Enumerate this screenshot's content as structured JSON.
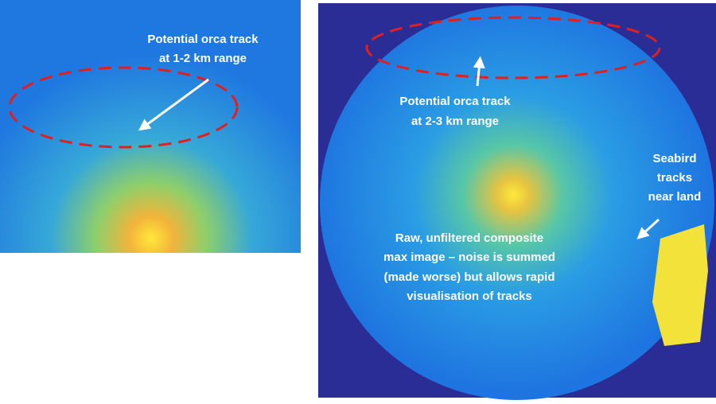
{
  "left_panel": {
    "annotation": [
      "Potential orca track",
      "at 1-2 km range"
    ]
  },
  "right_panel": {
    "orca_annotation": [
      "Potential orca track",
      "at 2-3 km range"
    ],
    "seabird_annotation": [
      "Seabird",
      "tracks",
      "near land"
    ],
    "caption": [
      "Raw, unfiltered composite",
      "max image – noise is summed",
      "(made worse) but allows rapid",
      "visualisation of tracks"
    ]
  }
}
